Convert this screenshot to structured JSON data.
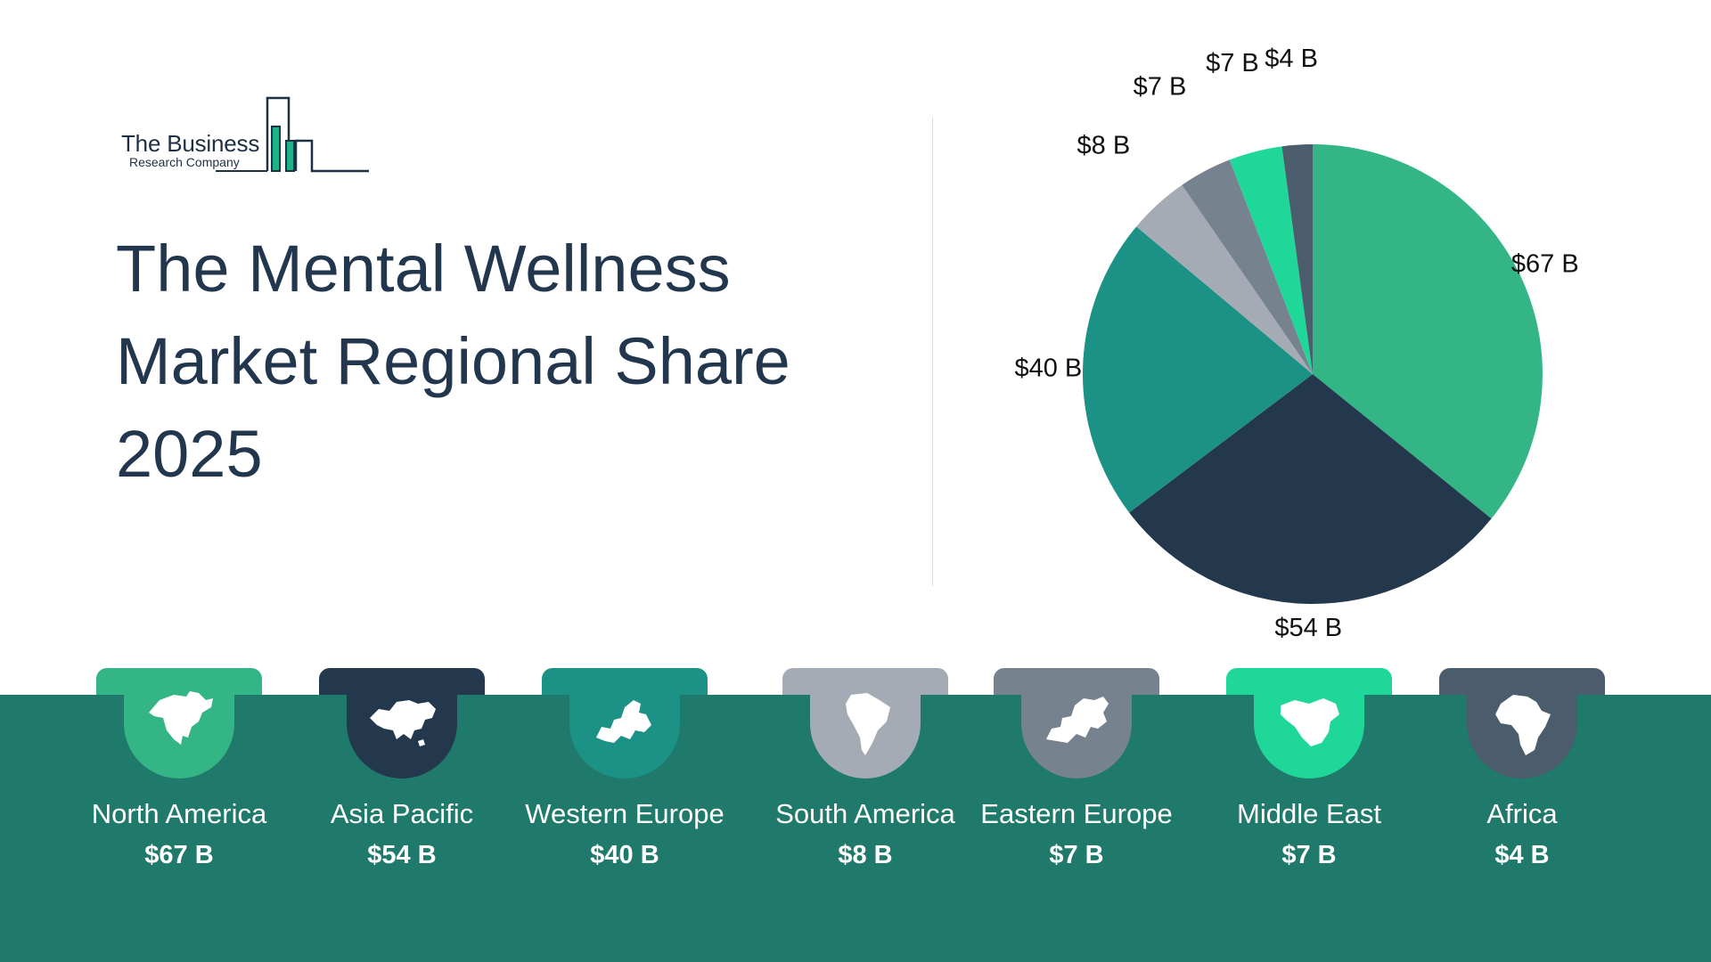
{
  "logo": {
    "line1": "The Business",
    "line2": "Research Company",
    "accent_color": "#1db38a"
  },
  "title": "The Mental Wellness Market Regional Share 2025",
  "chart_data": {
    "type": "pie",
    "title": "",
    "start": "12 o'clock, clockwise",
    "slices": [
      {
        "name": "North America",
        "value": 67,
        "label": "$67 B",
        "color": "#34b585"
      },
      {
        "name": "Asia Pacific",
        "value": 54,
        "label": "$54 B",
        "color": "#24384d"
      },
      {
        "name": "Western Europe",
        "value": 40,
        "label": "$40 B",
        "color": "#1c9185"
      },
      {
        "name": "South America",
        "value": 8,
        "label": "$8 B",
        "color": "#a5abb4"
      },
      {
        "name": "Eastern Europe",
        "value": 7,
        "label": "$7 B",
        "color": "#76828e"
      },
      {
        "name": "Middle East",
        "value": 7,
        "label": "$7 B",
        "color": "#20d79a"
      },
      {
        "name": "Africa",
        "value": 4,
        "label": "$4 B",
        "color": "#4b5c6c"
      }
    ]
  },
  "regions": [
    {
      "name": "North America",
      "value": "$67 B",
      "color": "#34b585",
      "icon": "north-america-map-icon"
    },
    {
      "name": "Asia Pacific",
      "value": "$54 B",
      "color": "#24384d",
      "icon": "asia-map-icon"
    },
    {
      "name": "Western Europe",
      "value": "$40 B",
      "color": "#1c9185",
      "icon": "western-europe-map-icon"
    },
    {
      "name": "South America",
      "value": "$8 B",
      "color": "#a5abb4",
      "icon": "south-america-map-icon"
    },
    {
      "name": "Eastern Europe",
      "value": "$7 B",
      "color": "#76828e",
      "icon": "eastern-europe-map-icon"
    },
    {
      "name": "Middle East",
      "value": "$7 B",
      "color": "#20d79a",
      "icon": "middle-east-map-icon"
    },
    {
      "name": "Africa",
      "value": "$4 B",
      "color": "#4b5c6c",
      "icon": "africa-map-icon"
    }
  ],
  "band_color": "#207a6b"
}
